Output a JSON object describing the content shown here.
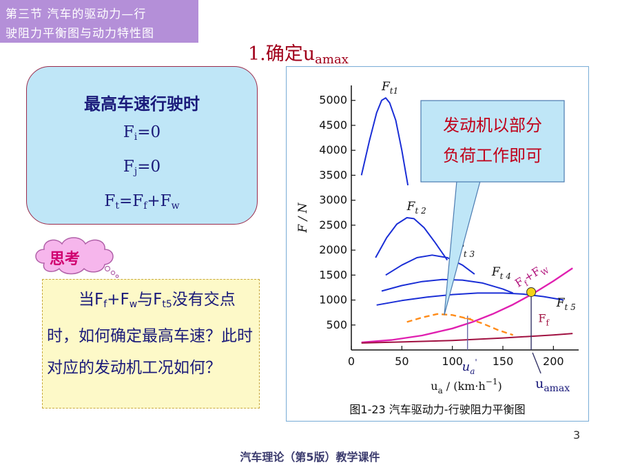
{
  "header": {
    "line1": "第三节  汽车的驱动力—行",
    "line2": "驶阻力平衡图与动力特性图"
  },
  "slide_title": {
    "prefix": "1.确定u",
    "sub": "amax"
  },
  "conditions": {
    "heading": "最高车速行驶时",
    "f1_sym": "F",
    "f1_sub": "i",
    "f1_rest": "=0",
    "f2_sym": "F",
    "f2_sub": "j",
    "f2_rest": "=0",
    "f3_a": "F",
    "f3_a_sub": "t",
    "f3_eq": "=F",
    "f3_b_sub": "f",
    "f3_plus": "+F",
    "f3_c_sub": "w"
  },
  "think_label": "思考",
  "question": {
    "p1": "当F",
    "s1": "f",
    "p2": "+F",
    "s2": "w",
    "p3": "与F",
    "s3": "t5",
    "p4": "没有交点时，如何确定最高车速？此时对应的发动机工况如何？"
  },
  "page_number": "3",
  "footer": "汽车理论（第5版）教学课件",
  "chart_data": {
    "type": "line",
    "caption": "图1-23   汽车驱动力-行驶阻力平衡图",
    "xlabel": "u_a / (km·h⁻¹)",
    "ylabel": "F / N",
    "xlim": [
      0,
      225
    ],
    "ylim": [
      0,
      5300
    ],
    "xticks": [
      0,
      50,
      100,
      150,
      200
    ],
    "yticks": [
      500,
      1000,
      1500,
      2000,
      2500,
      3000,
      3500,
      4000,
      4500,
      5000
    ],
    "series": [
      {
        "name": "Ft1",
        "color": "#1a2ed6",
        "x": [
          10,
          18,
          25,
          30,
          34,
          38,
          44,
          50,
          56
        ],
        "y": [
          3500,
          4200,
          4750,
          5000,
          5050,
          4950,
          4600,
          4000,
          3300
        ]
      },
      {
        "name": "Ft2",
        "color": "#1a2ed6",
        "x": [
          24,
          35,
          45,
          55,
          62,
          72,
          83,
          95
        ],
        "y": [
          1850,
          2250,
          2520,
          2650,
          2630,
          2450,
          2150,
          1800
        ]
      },
      {
        "name": "Ft3",
        "color": "#1a2ed6",
        "x": [
          34,
          50,
          65,
          80,
          95,
          110,
          122
        ],
        "y": [
          1500,
          1700,
          1850,
          1900,
          1850,
          1700,
          1520
        ]
      },
      {
        "name": "Ft4",
        "color": "#1a2ed6",
        "x": [
          30,
          50,
          70,
          90,
          110,
          130,
          150,
          160
        ],
        "y": [
          1180,
          1290,
          1370,
          1410,
          1400,
          1340,
          1220,
          1140
        ]
      },
      {
        "name": "Ft5",
        "color": "#1a2ed6",
        "x": [
          25,
          50,
          75,
          100,
          125,
          150,
          170,
          190,
          210
        ],
        "y": [
          900,
          990,
          1060,
          1110,
          1140,
          1140,
          1120,
          1070,
          1000
        ]
      },
      {
        "name": "Ff+Fw",
        "color": "#e020b0",
        "x": [
          10,
          40,
          70,
          100,
          120,
          140,
          160,
          180,
          200,
          219
        ],
        "y": [
          150,
          200,
          290,
          430,
          560,
          720,
          910,
          1130,
          1380,
          1640
        ]
      },
      {
        "name": "Ff",
        "color": "#a01040",
        "x": [
          10,
          50,
          100,
          150,
          200,
          219
        ],
        "y": [
          140,
          160,
          190,
          240,
          300,
          330
        ]
      },
      {
        "name": "partial load",
        "color": "#ff8c1a",
        "dashed": true,
        "x": [
          55,
          70,
          85,
          100,
          115,
          130,
          145,
          160
        ],
        "y": [
          560,
          650,
          720,
          700,
          630,
          530,
          400,
          300
        ]
      }
    ],
    "labels": {
      "ft1": "F",
      "ft1_sub": "t1",
      "ft2": "F",
      "ft2_sub": "t 2",
      "ft3": "F",
      "ft3_sub": "t 3",
      "ft4": "F",
      "ft4_sub": "t 4",
      "ft5": "F",
      "ft5_sub": "t 5",
      "ffw": "F",
      "ffw_sub1": "f",
      "ffw_mid": "+F",
      "ffw_sub2": "W",
      "ff": "F",
      "ff_sub": "f",
      "ua_prime": "u",
      "ua_prime_sub": "a",
      "ua_prime_sup": "'",
      "uamax": "u",
      "uamax_sub": "amax"
    },
    "markers": {
      "uamax_x": 178,
      "uamax_y": 1160,
      "ua_prime_x": 115,
      "ua_prime_y": 630
    },
    "callout": {
      "line1": "发动机以部分",
      "line2": "负荷工作即可",
      "tail_x": 92,
      "tail_y": 700
    }
  }
}
